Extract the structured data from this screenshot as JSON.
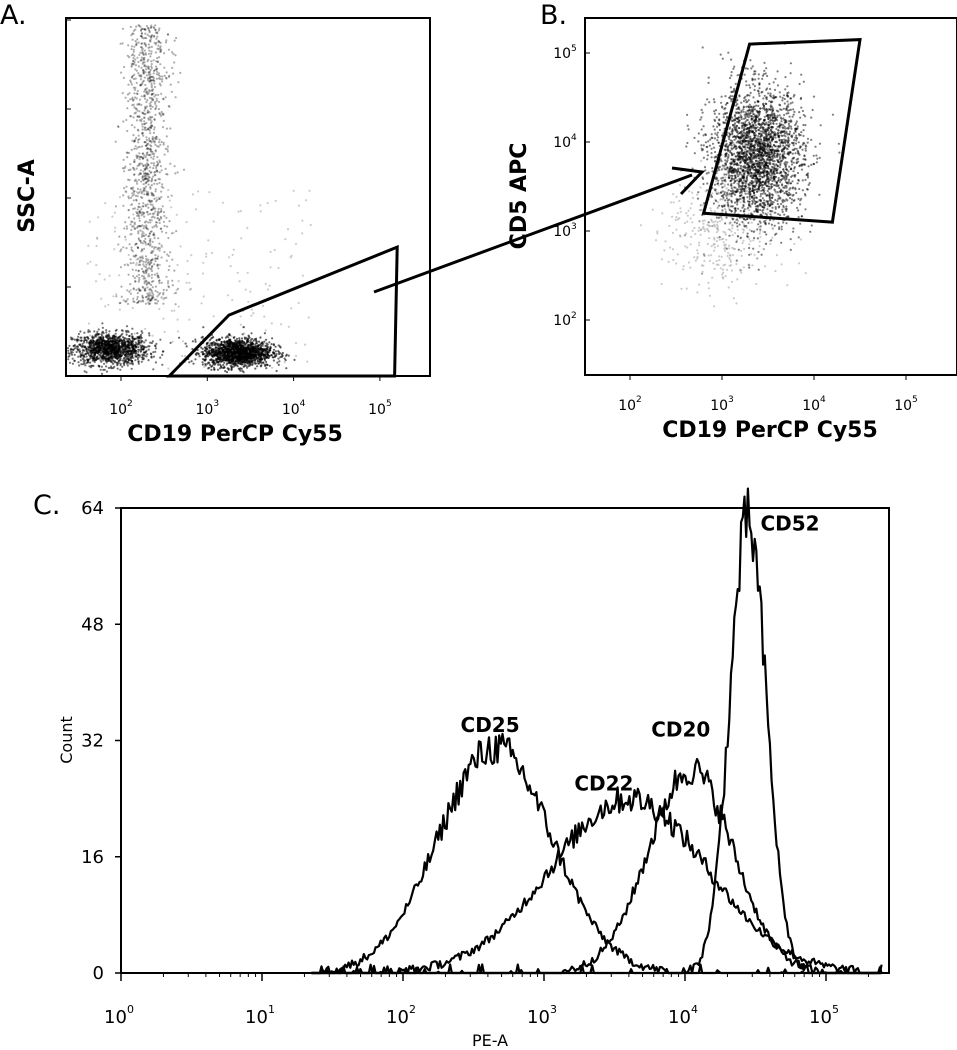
{
  "panels": {
    "a": {
      "letter": "A.",
      "xlabel": "CD19 PerCP Cy55",
      "ylabel": "SSC-A"
    },
    "b": {
      "letter": "B.",
      "xlabel": "CD19 PerCP Cy55",
      "ylabel": "CD5 APC"
    },
    "c": {
      "letter": "C.",
      "xlabel": "PE-A",
      "ylabel": "Count"
    }
  },
  "chart_data": [
    {
      "type": "scatter",
      "panel": "A",
      "xlabel": "CD19 PerCP Cy55",
      "ylabel": "SSC-A",
      "x_scale": "log",
      "x_ticks": [
        {
          "base": "10",
          "exp": "2",
          "value": 100
        },
        {
          "base": "10",
          "exp": "3",
          "value": 1000
        },
        {
          "base": "10",
          "exp": "4",
          "value": 10000
        },
        {
          "base": "10",
          "exp": "5",
          "value": 100000
        }
      ],
      "y_tick_count": 4,
      "populations": [
        {
          "x_log": 1.9,
          "y_frac": 0.07,
          "density": "dense"
        },
        {
          "x_log": 3.3,
          "y_frac": 0.06,
          "density": "dense"
        },
        {
          "x_log": 2.3,
          "y_frac": 0.7,
          "density": "sparse, vertical band"
        }
      ],
      "gate_vertices": [
        [
          2.56,
          0.0
        ],
        [
          3.25,
          0.17
        ],
        [
          5.2,
          0.36
        ],
        [
          5.17,
          0.0
        ]
      ]
    },
    {
      "type": "scatter",
      "panel": "B",
      "xlabel": "CD19 PerCP Cy55",
      "ylabel": "CD5 APC",
      "x_scale": "log",
      "y_scale": "log",
      "x_ticks": [
        {
          "base": "10",
          "exp": "2",
          "value": 100
        },
        {
          "base": "10",
          "exp": "3",
          "value": 1000
        },
        {
          "base": "10",
          "exp": "4",
          "value": 10000
        },
        {
          "base": "10",
          "exp": "5",
          "value": 100000
        }
      ],
      "y_ticks": [
        {
          "base": "10",
          "exp": "2",
          "value": 100
        },
        {
          "base": "10",
          "exp": "3",
          "value": 1000
        },
        {
          "base": "10",
          "exp": "4",
          "value": 10000
        },
        {
          "base": "10",
          "exp": "5",
          "value": 100000
        }
      ],
      "populations": [
        {
          "x_log": 3.35,
          "y_log": 3.85,
          "density": "dense"
        }
      ],
      "gate_vertices": [
        [
          3.3,
          5.1
        ],
        [
          4.5,
          5.15
        ],
        [
          4.2,
          3.1
        ],
        [
          2.8,
          3.2
        ]
      ]
    },
    {
      "type": "line",
      "panel": "C",
      "xlabel": "PE-A",
      "ylabel": "Count",
      "x_scale": "log",
      "xlim": [
        1,
        250000
      ],
      "ylim": [
        0,
        64
      ],
      "x_ticks": [
        {
          "base": "10",
          "exp": "0",
          "value": 1
        },
        {
          "base": "10",
          "exp": "1",
          "value": 10
        },
        {
          "base": "10",
          "exp": "2",
          "value": 100
        },
        {
          "base": "10",
          "exp": "3",
          "value": 1000
        },
        {
          "base": "10",
          "exp": "4",
          "value": 10000
        },
        {
          "base": "10",
          "exp": "5",
          "value": 100000
        }
      ],
      "y_ticks": [
        0,
        16,
        32,
        48,
        64
      ],
      "series": [
        {
          "name": "CD25",
          "peak_x": 450,
          "peak_y": 31,
          "spread_log": 0.4
        },
        {
          "name": "CD22",
          "peak_x": 4000,
          "peak_y": 24,
          "spread_log": 0.55
        },
        {
          "name": "CD20",
          "peak_x": 11000,
          "peak_y": 28,
          "spread_log": 0.3
        },
        {
          "name": "CD52",
          "peak_x": 28000,
          "peak_y": 62,
          "spread_log": 0.13
        }
      ]
    }
  ]
}
